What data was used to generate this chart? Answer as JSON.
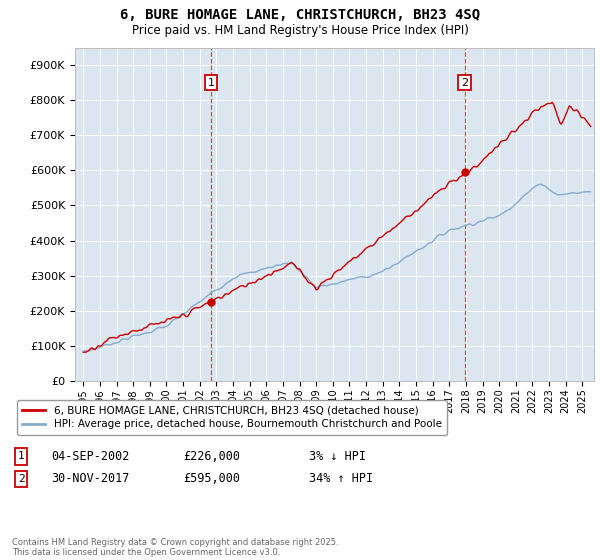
{
  "title": "6, BURE HOMAGE LANE, CHRISTCHURCH, BH23 4SQ",
  "subtitle": "Price paid vs. HM Land Registry's House Price Index (HPI)",
  "ylim": [
    0,
    950000
  ],
  "xlim_start": 1994.5,
  "xlim_end": 2025.7,
  "sale1_date": 2002.67,
  "sale1_price": 226000,
  "sale2_date": 2017.92,
  "sale2_price": 595000,
  "line_color_red": "#cc0000",
  "line_color_blue": "#88aacc",
  "dashed_line_color": "#cc3333",
  "marker_box_color": "#cc0000",
  "plot_bg_color": "#dce6f1",
  "legend_label_red": "6, BURE HOMAGE LANE, CHRISTCHURCH, BH23 4SQ (detached house)",
  "legend_label_blue": "HPI: Average price, detached house, Bournemouth Christchurch and Poole",
  "footer": "Contains HM Land Registry data © Crown copyright and database right 2025.\nThis data is licensed under the Open Government Licence v3.0.",
  "ann1_date": "04-SEP-2002",
  "ann1_price": "£226,000",
  "ann1_pct": "3% ↓ HPI",
  "ann2_date": "30-NOV-2017",
  "ann2_price": "£595,000",
  "ann2_pct": "34% ↑ HPI"
}
